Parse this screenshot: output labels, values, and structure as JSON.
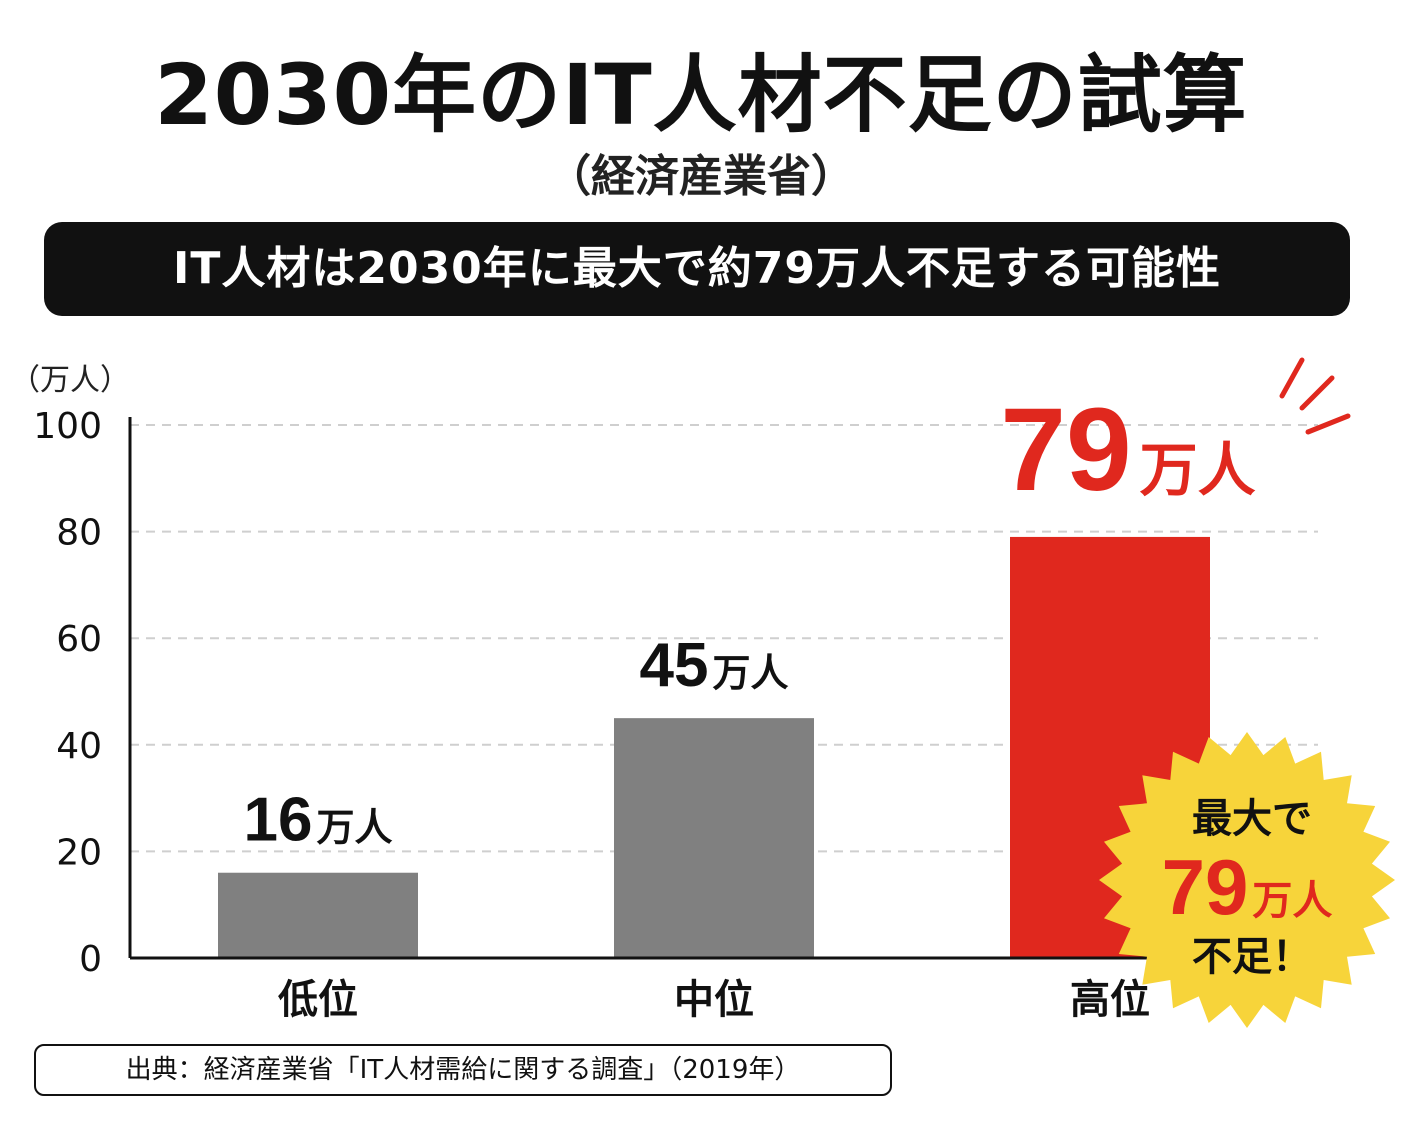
{
  "header": {
    "title": "2030年のIT人材不足の試算",
    "subtitle": "（経済産業省）",
    "banner": "IT人材は2030年に最大で約79万人不足する可能性"
  },
  "chart_data": {
    "type": "bar",
    "unit_label": "（万人）",
    "categories": [
      "低位",
      "中位",
      "高位"
    ],
    "values": [
      16,
      45,
      79
    ],
    "value_labels": [
      {
        "number": "16",
        "unit": "万人"
      },
      {
        "number": "45",
        "unit": "万人"
      },
      {
        "number": "79",
        "unit": "万人"
      }
    ],
    "ylim": [
      0,
      100
    ],
    "yticks": [
      0,
      20,
      40,
      60,
      80,
      100
    ],
    "grid": true,
    "bar_colors": [
      "#808080",
      "#808080",
      "#e0281e"
    ],
    "value_label_colors": [
      "#111111",
      "#111111",
      "#e0281e"
    ],
    "highlight_color": "#e0281e",
    "badge": {
      "line1": "最大で",
      "number": "79",
      "unit": "万人",
      "line3": "不足！",
      "color": "#f7d43a"
    }
  },
  "source": "出典：経済産業省「IT人材需給に関する調査」（2019年）"
}
